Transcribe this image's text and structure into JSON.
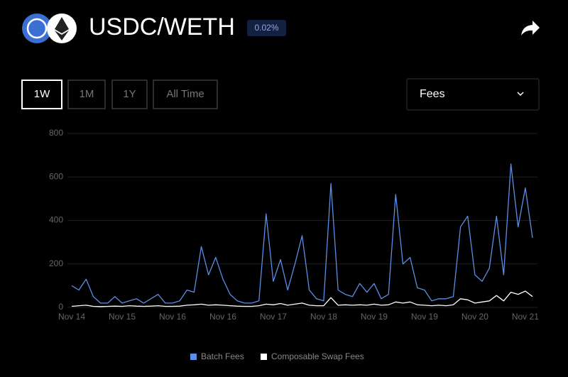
{
  "header": {
    "title": "USDC/WETH",
    "fee_tier": "0.02%"
  },
  "controls": {
    "ranges": [
      "1W",
      "1M",
      "1Y",
      "All Time"
    ],
    "metric": "Fees"
  },
  "chart_data": {
    "type": "line",
    "categories": [
      "Nov 14",
      null,
      null,
      null,
      null,
      null,
      null,
      "Nov 15",
      null,
      null,
      null,
      null,
      null,
      null,
      "Nov 16",
      null,
      null,
      null,
      null,
      null,
      null,
      "Nov 16",
      null,
      null,
      null,
      null,
      null,
      null,
      "Nov 17",
      null,
      null,
      null,
      null,
      null,
      null,
      "Nov 18",
      null,
      null,
      null,
      null,
      null,
      null,
      "Nov 19",
      null,
      null,
      null,
      null,
      null,
      null,
      "Nov 19",
      null,
      null,
      null,
      null,
      null,
      null,
      "Nov 20",
      null,
      null,
      null,
      null,
      null,
      null,
      "Nov 21",
      null
    ],
    "series": [
      {
        "name": "Batch Fees",
        "color": "#5b8ee6",
        "values": [
          100,
          80,
          130,
          50,
          20,
          20,
          50,
          20,
          30,
          40,
          20,
          40,
          60,
          20,
          20,
          30,
          80,
          70,
          280,
          150,
          230,
          130,
          60,
          30,
          20,
          20,
          30,
          430,
          120,
          220,
          80,
          200,
          330,
          80,
          40,
          30,
          570,
          80,
          60,
          50,
          110,
          70,
          110,
          40,
          60,
          520,
          200,
          230,
          90,
          80,
          30,
          40,
          40,
          50,
          370,
          420,
          150,
          120,
          180,
          420,
          150,
          660,
          370,
          550,
          320
        ]
      },
      {
        "name": "Composable Swap Fees",
        "color": "#ffffff",
        "values": [
          5,
          8,
          10,
          5,
          4,
          5,
          6,
          5,
          8,
          6,
          5,
          6,
          8,
          5,
          5,
          6,
          10,
          12,
          15,
          10,
          12,
          10,
          8,
          6,
          5,
          5,
          8,
          15,
          12,
          18,
          10,
          15,
          20,
          10,
          8,
          8,
          45,
          10,
          12,
          10,
          12,
          10,
          15,
          10,
          12,
          25,
          20,
          25,
          12,
          10,
          8,
          10,
          8,
          12,
          40,
          35,
          20,
          25,
          30,
          55,
          30,
          70,
          60,
          75,
          50
        ]
      }
    ],
    "ylim": [
      0,
      800
    ],
    "yticks": [
      0,
      200,
      400,
      600,
      800
    ],
    "grid": true,
    "legend": "bottom"
  }
}
